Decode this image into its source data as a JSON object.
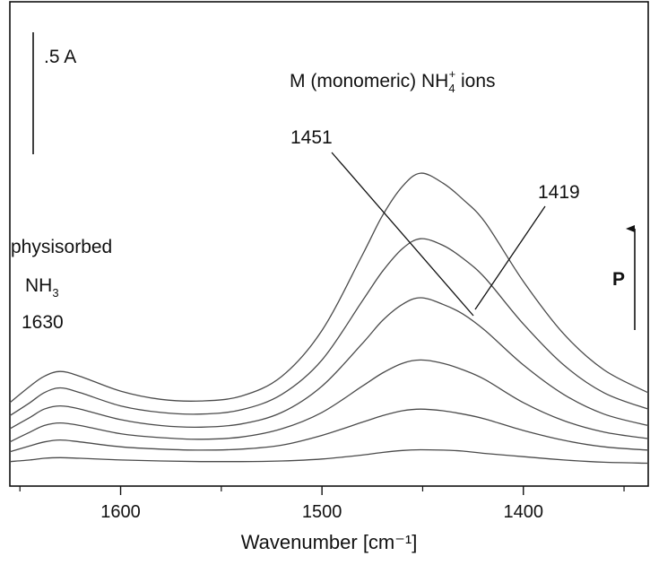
{
  "chart_data": {
    "type": "line",
    "title": "",
    "xlabel": "Wavenumber [cm⁻¹]",
    "ylabel": "",
    "x_reversed": true,
    "xlim": [
      1655,
      1338
    ],
    "ylim": [
      0,
      1.1
    ],
    "grid": false,
    "legend": "none",
    "x_ticks": [
      1600,
      1500,
      1400
    ],
    "x_tick_labels": [
      "1600",
      "1500",
      "1400"
    ],
    "x_minor_ticks": [
      1650,
      1550,
      1450,
      1350
    ],
    "series": [
      {
        "x": [
          1655,
          1645,
          1638,
          1630,
          1620,
          1600,
          1580,
          1560,
          1540,
          1520,
          1500,
          1480,
          1470,
          1460,
          1451,
          1440,
          1430,
          1419,
          1400,
          1380,
          1360,
          1338
        ],
        "y": [
          0.02,
          0.025,
          0.03,
          0.032,
          0.03,
          0.025,
          0.022,
          0.02,
          0.02,
          0.022,
          0.028,
          0.04,
          0.048,
          0.054,
          0.056,
          0.055,
          0.052,
          0.045,
          0.035,
          0.025,
          0.018,
          0.015
        ]
      },
      {
        "x": [
          1655,
          1645,
          1638,
          1630,
          1620,
          1600,
          1580,
          1560,
          1540,
          1520,
          1500,
          1480,
          1470,
          1460,
          1451,
          1440,
          1430,
          1419,
          1400,
          1380,
          1360,
          1338
        ],
        "y": [
          0.05,
          0.068,
          0.08,
          0.086,
          0.08,
          0.065,
          0.058,
          0.055,
          0.058,
          0.07,
          0.1,
          0.14,
          0.16,
          0.175,
          0.18,
          0.175,
          0.165,
          0.15,
          0.115,
          0.085,
          0.065,
          0.055
        ]
      },
      {
        "x": [
          1655,
          1645,
          1638,
          1630,
          1620,
          1600,
          1580,
          1560,
          1540,
          1520,
          1500,
          1480,
          1470,
          1460,
          1451,
          1440,
          1430,
          1419,
          1400,
          1380,
          1360,
          1338
        ],
        "y": [
          0.08,
          0.11,
          0.13,
          0.138,
          0.13,
          0.105,
          0.093,
          0.088,
          0.095,
          0.12,
          0.17,
          0.25,
          0.29,
          0.32,
          0.33,
          0.32,
          0.3,
          0.27,
          0.2,
          0.145,
          0.11,
          0.09
        ]
      },
      {
        "x": [
          1655,
          1645,
          1638,
          1630,
          1620,
          1600,
          1580,
          1560,
          1540,
          1520,
          1500,
          1480,
          1470,
          1460,
          1451,
          1440,
          1430,
          1419,
          1400,
          1380,
          1360,
          1338
        ],
        "y": [
          0.12,
          0.155,
          0.18,
          0.19,
          0.18,
          0.148,
          0.13,
          0.125,
          0.135,
          0.17,
          0.25,
          0.38,
          0.45,
          0.5,
          0.52,
          0.5,
          0.47,
          0.42,
          0.315,
          0.225,
          0.165,
          0.13
        ]
      },
      {
        "x": [
          1655,
          1645,
          1638,
          1630,
          1620,
          1600,
          1580,
          1560,
          1540,
          1520,
          1500,
          1480,
          1470,
          1460,
          1451,
          1440,
          1430,
          1419,
          1400,
          1380,
          1360,
          1338
        ],
        "y": [
          0.16,
          0.2,
          0.23,
          0.245,
          0.23,
          0.19,
          0.17,
          0.165,
          0.178,
          0.225,
          0.33,
          0.51,
          0.6,
          0.67,
          0.7,
          0.68,
          0.64,
          0.58,
          0.44,
          0.315,
          0.23,
          0.18
        ]
      },
      {
        "x": [
          1655,
          1645,
          1638,
          1630,
          1620,
          1600,
          1580,
          1560,
          1540,
          1520,
          1500,
          1480,
          1470,
          1460,
          1451,
          1440,
          1430,
          1419,
          1400,
          1380,
          1360,
          1338
        ],
        "y": [
          0.2,
          0.25,
          0.28,
          0.295,
          0.28,
          0.235,
          0.21,
          0.205,
          0.22,
          0.28,
          0.42,
          0.65,
          0.77,
          0.86,
          0.9,
          0.87,
          0.82,
          0.75,
          0.57,
          0.41,
          0.3,
          0.23
        ]
      }
    ],
    "annotations": [
      {
        "text": "M (monomeric) NH",
        "sub": "4",
        "sup": "+",
        "after": " ions"
      },
      {
        "text": "1451"
      },
      {
        "text": "1419"
      },
      {
        "text": "physisorbed"
      },
      {
        "text": "NH",
        "sub": "3"
      },
      {
        "text": "1630"
      },
      {
        "text": "P"
      }
    ],
    "scale_bar": {
      "text": ".5 A",
      "value": 0.5
    }
  }
}
